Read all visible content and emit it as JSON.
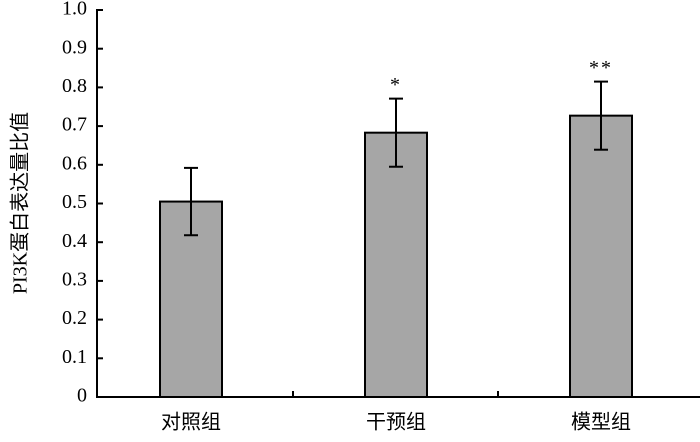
{
  "chart_data": {
    "type": "bar",
    "y_label": "PI3K蛋白表达量比值",
    "categories": [
      "对照组",
      "干预组",
      "模型组"
    ],
    "values": [
      0.505,
      0.683,
      0.727
    ],
    "errors": [
      0.087,
      0.088,
      0.088
    ],
    "significance": [
      null,
      "*",
      "**"
    ],
    "color": "#a6a6a6",
    "ylim": [
      0,
      1
    ],
    "yticks": [
      0,
      0.1,
      0.2,
      0.3,
      0.4,
      0.5,
      0.6,
      0.7,
      0.8,
      0.9,
      {
        "value": 1,
        "label": "1.0"
      }
    ],
    "grid": false
  }
}
